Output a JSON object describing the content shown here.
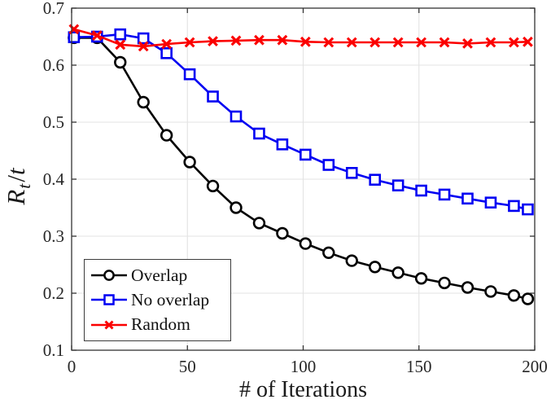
{
  "chart_data": {
    "type": "line",
    "title": "",
    "xlabel": "# of Iterations",
    "ylabel": "R_t/t",
    "ylabel_rich": {
      "base": "R",
      "sub": "t",
      "slash": "/",
      "denom": "t"
    },
    "xlim": [
      0,
      200
    ],
    "ylim": [
      0.1,
      0.7
    ],
    "xtick_values": [
      0,
      50,
      100,
      150,
      200
    ],
    "xtick_labels": [
      "0",
      "50",
      "100",
      "150",
      "200"
    ],
    "ytick_values": [
      0.1,
      0.2,
      0.3,
      0.4,
      0.5,
      0.6,
      0.7
    ],
    "ytick_labels": [
      "0.1",
      "0.2",
      "0.3",
      "0.4",
      "0.5",
      "0.6",
      "0.7"
    ],
    "grid": true,
    "box": true,
    "legend_position": "lower left",
    "x": [
      1,
      11,
      21,
      31,
      41,
      51,
      61,
      71,
      81,
      91,
      101,
      111,
      121,
      131,
      141,
      151,
      161,
      171,
      181,
      191,
      197
    ],
    "series": [
      {
        "name": "Overlap",
        "color": "#000000",
        "marker": "circle",
        "values": [
          0.648,
          0.648,
          0.605,
          0.535,
          0.477,
          0.43,
          0.388,
          0.35,
          0.323,
          0.305,
          0.287,
          0.271,
          0.257,
          0.246,
          0.236,
          0.226,
          0.218,
          0.21,
          0.203,
          0.196,
          0.19
        ]
      },
      {
        "name": "No overlap",
        "color": "#0000f2",
        "marker": "square",
        "values": [
          0.649,
          0.65,
          0.654,
          0.647,
          0.621,
          0.584,
          0.545,
          0.51,
          0.48,
          0.461,
          0.443,
          0.425,
          0.411,
          0.399,
          0.389,
          0.38,
          0.373,
          0.366,
          0.359,
          0.353,
          0.347
        ]
      },
      {
        "name": "Random",
        "color": "#fb0000",
        "marker": "x",
        "values": [
          0.663,
          0.652,
          0.636,
          0.633,
          0.637,
          0.64,
          0.642,
          0.643,
          0.644,
          0.644,
          0.641,
          0.64,
          0.64,
          0.64,
          0.64,
          0.64,
          0.64,
          0.638,
          0.64,
          0.64,
          0.641
        ]
      }
    ],
    "colors": {
      "grid": "#e3e3e3",
      "axis_box": "#333333",
      "tick_label": "#262626",
      "background": "#ffffff"
    }
  }
}
